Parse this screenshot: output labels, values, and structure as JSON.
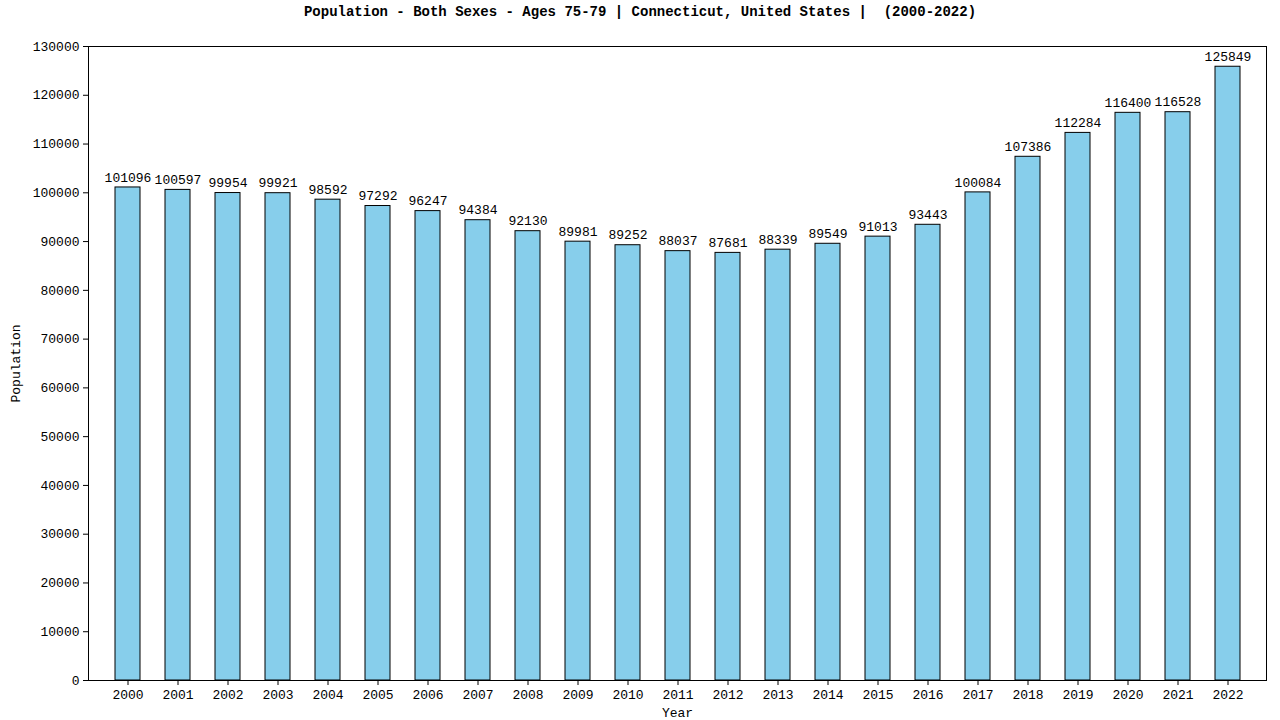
{
  "chart_data": {
    "type": "bar",
    "title": "Population - Both Sexes - Ages 75-79 | Connecticut, United States |  (2000-2022)",
    "x_label": "Year",
    "y_label": "Population",
    "categories": [
      "2000",
      "2001",
      "2002",
      "2003",
      "2004",
      "2005",
      "2006",
      "2007",
      "2008",
      "2009",
      "2010",
      "2011",
      "2012",
      "2013",
      "2014",
      "2015",
      "2016",
      "2017",
      "2018",
      "2019",
      "2020",
      "2021",
      "2022"
    ],
    "values": [
      101096,
      100597,
      99954,
      99921,
      98592,
      97292,
      96247,
      94384,
      92130,
      89981,
      89252,
      88037,
      87681,
      88339,
      89549,
      91013,
      93443,
      100084,
      107386,
      112284,
      116400,
      116528,
      125849
    ],
    "color": "#87ceeb",
    "ylim": [
      0,
      130000
    ],
    "yticks": [
      0,
      10000,
      20000,
      30000,
      40000,
      50000,
      60000,
      70000,
      80000,
      90000,
      100000,
      110000,
      120000,
      130000
    ],
    "grid": false,
    "data_labels": true
  }
}
